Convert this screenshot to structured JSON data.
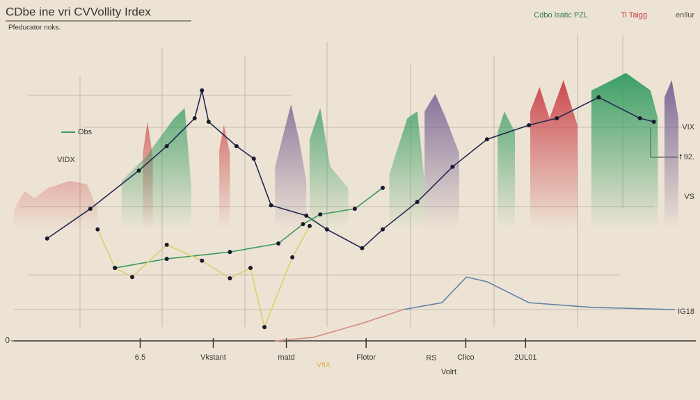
{
  "chart_data": {
    "type": "line",
    "title": "CDbe ine vri CVVollity Irdex",
    "subtitle": "Pfeducator noks.",
    "xlim": [
      0,
      100
    ],
    "ylim": [
      0,
      100
    ],
    "xticks": [
      {
        "value": 19,
        "label": "6.5"
      },
      {
        "value": 30,
        "label": "Vkstant"
      },
      {
        "value": 41,
        "label": "matd"
      },
      {
        "value": 53,
        "label": "Flotor"
      },
      {
        "value": 68,
        "label": "Clico"
      },
      {
        "value": 77,
        "label": "2UL01"
      }
    ],
    "yticks": [
      0
    ],
    "series": [
      {
        "color": "#1f2a4f",
        "markers": true,
        "x": [
          5.0,
          11.5,
          18.8,
          23.0,
          27.2,
          28.3,
          29.3,
          33.5,
          36.1,
          38.7,
          44,
          47.1,
          52.4,
          55.5,
          60.7,
          66,
          71.2,
          77.5,
          81.7,
          88,
          94.2,
          96.3
        ],
        "values": [
          32.7,
          42.2,
          54.4,
          62.2,
          71.1,
          80,
          70,
          62.2,
          58.2,
          43.3,
          40,
          35.6,
          29.6,
          35.6,
          44.4,
          55.6,
          64.4,
          68.9,
          71.1,
          77.8,
          71.1,
          70
        ]
      },
      {
        "color": "#3a9a5a",
        "markers": true,
        "x": [
          15.2,
          23,
          32.5,
          39.8,
          43.5,
          46.1,
          51.3,
          55.5
        ],
        "values": [
          23.3,
          26.2,
          28.4,
          31.1,
          37.3,
          40.4,
          42.2,
          48.9
        ]
      },
      {
        "color": "#d9cf6a",
        "markers": true,
        "x": [
          12.6,
          15.2,
          17.8,
          23,
          28.3,
          32.5,
          35.6,
          37.7,
          41.9,
          44.5
        ],
        "values": [
          35.6,
          23.3,
          20.4,
          30.7,
          25.6,
          20,
          23.3,
          4.4,
          26.7,
          36.7
        ]
      },
      {
        "color": "#d98a80",
        "markers": false,
        "x": [
          39.3,
          45,
          52.4,
          58.6
        ],
        "values": [
          0,
          1.1,
          5.6,
          10
        ]
      },
      {
        "color": "#5f7fa8",
        "markers": false,
        "x": [
          58.6,
          64.4,
          68.1,
          71.2,
          77.5,
          86.9,
          99.5
        ],
        "values": [
          10,
          12.2,
          20.4,
          18.9,
          12.2,
          10.7,
          10
        ]
      },
      {
        "color": "#c8373f",
        "area": true,
        "x": [
          0,
          1.6,
          3.1,
          5.2,
          8.4,
          11,
          12.6,
          null,
          19.4,
          20.1,
          20.9,
          null,
          30.9,
          31.6,
          32.5,
          null,
          77.7,
          79.1,
          80.6,
          82.7,
          84.8
        ],
        "values": [
          42,
          47.8,
          45.6,
          48.9,
          51.1,
          50,
          42,
          null,
          60,
          70,
          58.9,
          null,
          61,
          68.9,
          60,
          null,
          73.3,
          81.1,
          71.1,
          83.3,
          68.9
        ]
      },
      {
        "color": "#2e9a5c",
        "area": true,
        "x": [
          16.2,
          19.9,
          24.1,
          25.7,
          26.7,
          null,
          44.5,
          46.1,
          47.6,
          50.3,
          null,
          56.5,
          59.2,
          60.7,
          61.8,
          null,
          72.8,
          73.8,
          75.4,
          null,
          86.9,
          89,
          92.1,
          95.8,
          96.9
        ],
        "values": [
          51.1,
          58.9,
          71.1,
          74.4,
          48.9,
          null,
          64.4,
          74.4,
          55.6,
          48.9,
          null,
          53.3,
          71.1,
          73.3,
          51.1,
          null,
          66.7,
          73.3,
          66.7,
          null,
          80,
          82.2,
          85.6,
          80,
          71.1
        ]
      },
      {
        "color": "#6e5a8e",
        "area": true,
        "x": [
          39.3,
          41.7,
          42.9,
          44,
          null,
          61.8,
          63.4,
          65,
          67,
          null,
          97.9,
          99,
          100
        ],
        "values": [
          55.6,
          75.6,
          64.4,
          51.1,
          null,
          73.3,
          78.9,
          71.1,
          60,
          null,
          77.8,
          83.3,
          71.1
        ]
      }
    ],
    "annotations": [
      "Cdbo lsatic PZL",
      "Ti Taigg",
      "enllur",
      "Obs",
      "VIDX",
      "VIX",
      "f 92.",
      "VS",
      "IG18",
      "VfiX",
      "RS",
      "Volrt"
    ]
  }
}
